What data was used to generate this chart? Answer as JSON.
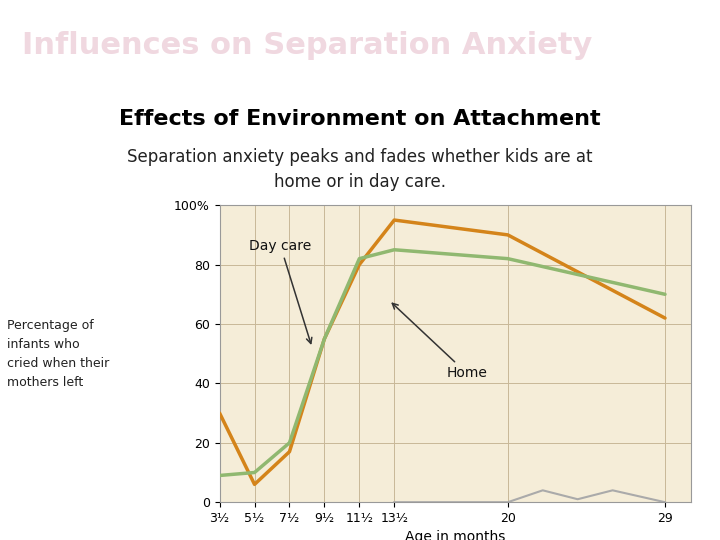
{
  "title": "Influences on Separation Anxiety",
  "subtitle": "Effects of Environment on Attachment",
  "description": "Separation anxiety peaks and fades whether kids are at\nhome or in day care.",
  "title_bg_color": "#9B3068",
  "title_text_color": "#F0D8E0",
  "bg_color": "#FFFFFF",
  "chart_bg_color": "#F5EDD8",
  "xlabel": "Age in months",
  "ylabel": "Percentage of\ninfants who\ncried when their\nmothers left",
  "ylim": [
    0,
    100
  ],
  "yticks": [
    0,
    20,
    40,
    60,
    80,
    100
  ],
  "ytick_labels": [
    "0",
    "20",
    "40",
    "60",
    "80",
    "100%"
  ],
  "x_values": [
    3.5,
    5.5,
    7.5,
    9.5,
    11.5,
    13.5,
    20,
    29
  ],
  "xtick_labels": [
    "3½",
    "5½",
    "7½",
    "9½",
    "11½",
    "13½",
    "20",
    "29"
  ],
  "daycare_values": [
    30,
    6,
    17,
    55,
    80,
    95,
    90,
    62
  ],
  "home_values": [
    9,
    10,
    20,
    55,
    82,
    85,
    82,
    70
  ],
  "daycare_color": "#D4841A",
  "home_color": "#90B870",
  "gray_x": [
    13.5,
    20,
    22,
    24,
    26,
    29
  ],
  "gray_values": [
    0,
    0,
    4,
    1,
    4,
    0
  ],
  "gray_color": "#AAAAAA",
  "grid_color": "#C8B898",
  "grid_linewidth": 0.7,
  "title_fontsize": 22,
  "subtitle_fontsize": 16,
  "desc_fontsize": 12
}
